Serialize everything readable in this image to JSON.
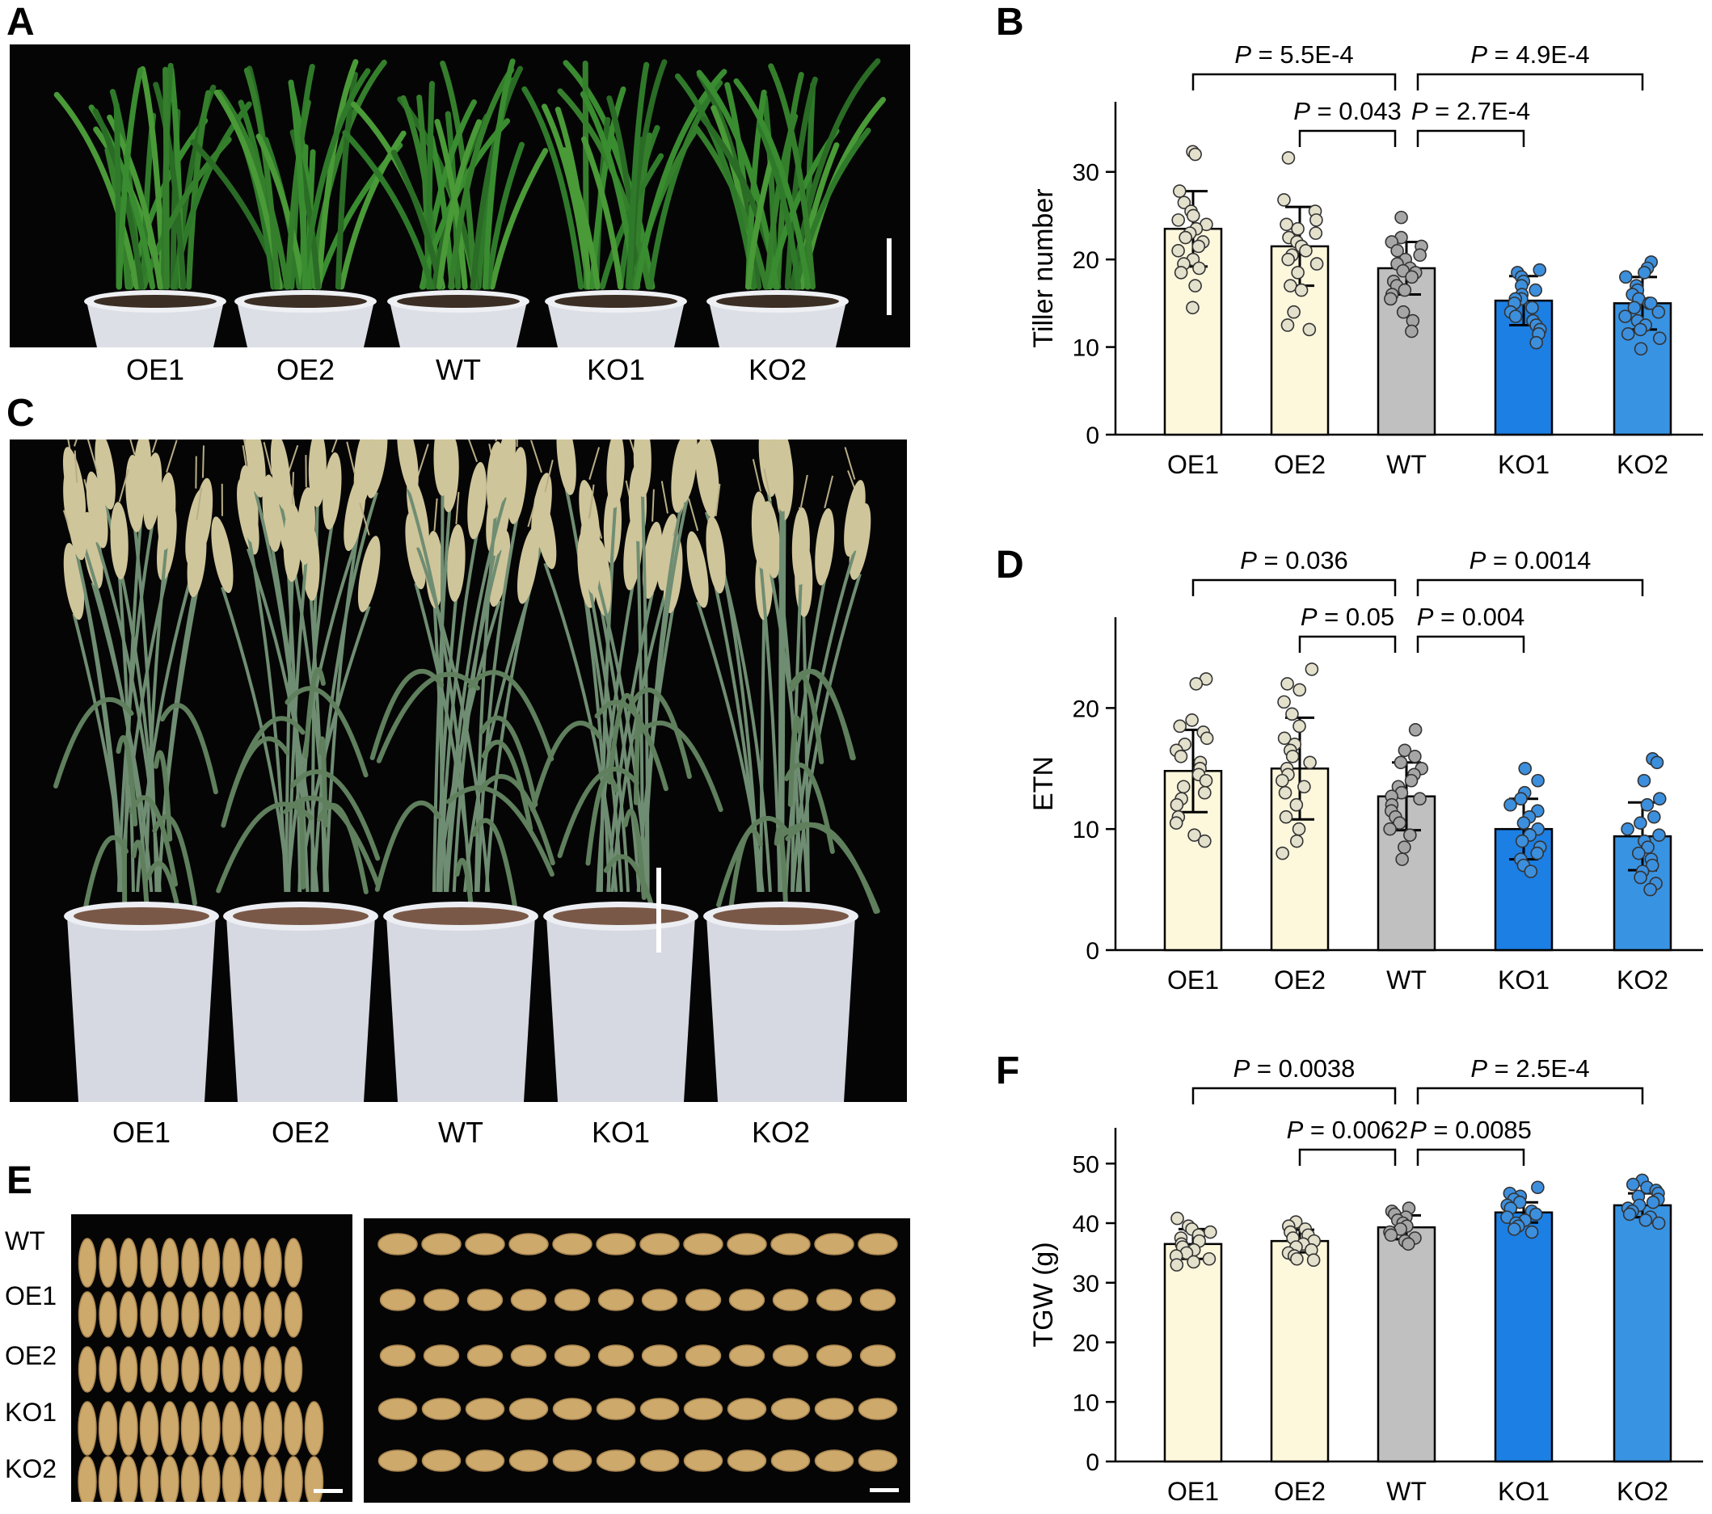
{
  "panels": {
    "a": "A",
    "b": "B",
    "c": "C",
    "d": "D",
    "e": "E",
    "f": "F"
  },
  "genotypes": [
    "OE1",
    "OE2",
    "WT",
    "KO1",
    "KO2"
  ],
  "grain_rows": [
    "WT",
    "OE1",
    "OE2",
    "KO1",
    "KO2"
  ],
  "colors": {
    "oe": "#fdf7dc",
    "wt": "#c0c0c0",
    "ko1": "#1c7fe3",
    "ko2": "#3893e2",
    "dot_oe": "#e3e0cc",
    "dot_wt": "#a6a6a6",
    "dot_ko": "#3c8fdd"
  },
  "chart_data": [
    {
      "type": "bar",
      "panel": "B",
      "categories": [
        "OE1",
        "OE2",
        "WT",
        "KO1",
        "KO2"
      ],
      "values": [
        23.5,
        21.5,
        19.0,
        15.3,
        15.0
      ],
      "sd": [
        4.3,
        4.5,
        3.0,
        2.8,
        3.0
      ],
      "ylabel": "Tiller number",
      "ylim": [
        0,
        38
      ],
      "yticks": [
        0,
        10,
        20,
        30
      ],
      "points": [
        [
          32.3,
          32.0,
          27.8,
          26.5,
          25.5,
          25.0,
          24.5,
          24.0,
          23.5,
          23.0,
          22.5,
          22.0,
          21.5,
          21.0,
          20.0,
          19.5,
          19.0,
          18.5,
          17.0,
          14.5
        ],
        [
          31.6,
          26.8,
          25.5,
          24.5,
          24.0,
          23.5,
          23.0,
          22.5,
          22.0,
          21.5,
          21.0,
          20.5,
          20.0,
          19.5,
          18.5,
          17.0,
          16.5,
          14.0,
          12.5,
          12.0
        ],
        [
          24.8,
          22.5,
          22.0,
          21.5,
          21.0,
          20.5,
          20.0,
          19.5,
          19.0,
          18.7,
          18.5,
          18.0,
          17.5,
          17.0,
          16.5,
          16.0,
          15.5,
          14.0,
          13.0,
          11.8
        ],
        [
          18.8,
          18.5,
          18.0,
          17.5,
          17.0,
          16.5,
          16.0,
          15.5,
          15.5,
          15.0,
          14.5,
          14.0,
          13.5,
          13.0,
          12.5,
          12.0,
          11.5,
          10.5
        ],
        [
          19.7,
          19.0,
          18.5,
          18.0,
          17.0,
          16.5,
          16.0,
          15.5,
          15.0,
          15.0,
          14.5,
          14.0,
          13.5,
          13.0,
          12.5,
          12.0,
          11.5,
          11.0,
          9.8
        ]
      ],
      "comparisons": [
        {
          "from": "OE1",
          "to": "WT",
          "label": "P = 5.5E-4",
          "level": 2
        },
        {
          "from": "OE2",
          "to": "WT",
          "label": "P = 0.043",
          "level": 1
        },
        {
          "from": "WT",
          "to": "KO2",
          "label": "P = 4.9E-4",
          "level": 2
        },
        {
          "from": "WT",
          "to": "KO1",
          "label": "P = 2.7E-4",
          "level": 1
        }
      ]
    },
    {
      "type": "bar",
      "panel": "D",
      "categories": [
        "OE1",
        "OE2",
        "WT",
        "KO1",
        "KO2"
      ],
      "values": [
        14.8,
        15.0,
        12.7,
        10.0,
        9.4
      ],
      "sd": [
        3.4,
        4.2,
        2.8,
        2.5,
        2.8
      ],
      "ylabel": "ETN",
      "ylim": [
        0,
        27.5
      ],
      "yticks": [
        0,
        10,
        20
      ],
      "points": [
        [
          22.4,
          22.0,
          19.0,
          18.5,
          18.0,
          17.5,
          17.0,
          16.5,
          16.0,
          15.5,
          15.0,
          14.5,
          14.0,
          13.5,
          13.0,
          12.5,
          12.0,
          11.0,
          10.5,
          9.5,
          9.0
        ],
        [
          23.2,
          22.0,
          21.5,
          20.5,
          19.5,
          18.5,
          17.5,
          17.0,
          16.5,
          16.0,
          15.5,
          15.0,
          14.5,
          14.0,
          13.5,
          13.0,
          12.0,
          11.0,
          10.0,
          9.0,
          8.0
        ],
        [
          18.2,
          16.5,
          16.0,
          15.5,
          15.0,
          14.5,
          14.0,
          13.5,
          13.0,
          12.7,
          12.5,
          12.0,
          11.5,
          11.0,
          10.5,
          10.0,
          9.5,
          8.5,
          7.5
        ],
        [
          15.0,
          14.0,
          13.0,
          12.5,
          12.0,
          11.5,
          11.0,
          10.5,
          10.0,
          9.5,
          9.0,
          8.5,
          8.0,
          7.5,
          7.0,
          6.5
        ],
        [
          15.8,
          15.5,
          14.0,
          12.5,
          12.0,
          11.0,
          10.5,
          10.0,
          9.5,
          9.0,
          8.5,
          8.0,
          7.5,
          7.0,
          6.5,
          6.0,
          5.5,
          5.0
        ]
      ],
      "comparisons": [
        {
          "from": "OE1",
          "to": "WT",
          "label": "P = 0.036",
          "level": 2
        },
        {
          "from": "OE2",
          "to": "WT",
          "label": "P = 0.05",
          "level": 1
        },
        {
          "from": "WT",
          "to": "KO2",
          "label": "P = 0.0014",
          "level": 2
        },
        {
          "from": "WT",
          "to": "KO1",
          "label": "P = 0.004",
          "level": 1
        }
      ]
    },
    {
      "type": "bar",
      "panel": "F",
      "categories": [
        "OE1",
        "OE2",
        "WT",
        "KO1",
        "KO2"
      ],
      "values": [
        36.5,
        37.0,
        39.3,
        41.8,
        43.0
      ],
      "sd": [
        2.5,
        1.9,
        2.0,
        1.7,
        2.0
      ],
      "ylabel": "TGW (g)",
      "ylim": [
        0,
        56
      ],
      "yticks": [
        0,
        10,
        20,
        30,
        40,
        50
      ],
      "points": [
        [
          40.8,
          39.5,
          39.0,
          38.5,
          38.0,
          37.5,
          37.0,
          36.5,
          36.0,
          35.5,
          35.0,
          34.5,
          34.0,
          33.5,
          33.0
        ],
        [
          40.2,
          39.5,
          39.0,
          38.5,
          38.0,
          37.5,
          37.0,
          36.5,
          36.0,
          35.5,
          35.0,
          34.5,
          34.0,
          33.8
        ],
        [
          42.5,
          42.0,
          41.5,
          41.0,
          40.5,
          40.0,
          39.5,
          39.0,
          38.5,
          38.0,
          37.5,
          37.0,
          36.5
        ],
        [
          46.0,
          45.0,
          44.5,
          44.0,
          43.5,
          43.0,
          42.5,
          42.0,
          41.5,
          41.0,
          40.5,
          40.0,
          39.5,
          39.0,
          38.5
        ],
        [
          47.2,
          46.5,
          46.0,
          45.5,
          45.0,
          44.5,
          44.0,
          43.5,
          43.0,
          42.5,
          42.0,
          41.5,
          41.0,
          40.5,
          40.0
        ]
      ],
      "comparisons": [
        {
          "from": "OE1",
          "to": "WT",
          "label": "P = 0.0038",
          "level": 2
        },
        {
          "from": "OE2",
          "to": "WT",
          "label": "P = 0.0062",
          "level": 1
        },
        {
          "from": "WT",
          "to": "KO2",
          "label": "P = 2.5E-4",
          "level": 2
        },
        {
          "from": "WT",
          "to": "KO1",
          "label": "P = 0.0085",
          "level": 1
        }
      ]
    }
  ]
}
